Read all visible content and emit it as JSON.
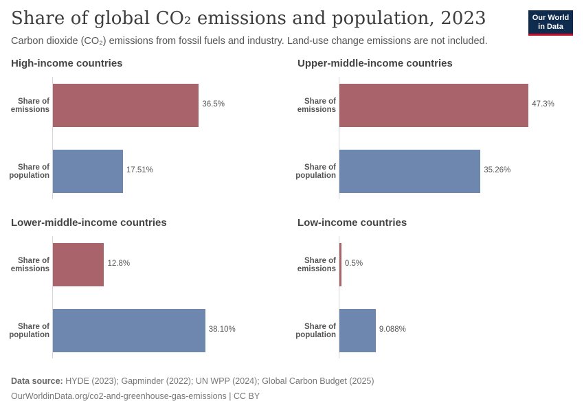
{
  "header": {
    "title": "Share of global CO₂ emissions and population, 2023",
    "subtitle": "Carbon dioxide (CO₂) emissions from fossil fuels and industry. Land-use change emissions are not included."
  },
  "logo": {
    "line1": "Our World",
    "line2": "in Data"
  },
  "footer": {
    "source_label": "Data source:",
    "source_text": "HYDE (2023); Gapminder (2022); UN WPP (2024); Global Carbon Budget (2025)",
    "url_text": "OurWorldinData.org/co2-and-greenhouse-gas-emissions | CC BY"
  },
  "colors": {
    "emissions": "#a9636a",
    "population": "#6d87ae"
  },
  "chart_data": [
    {
      "type": "bar",
      "title": "High-income countries",
      "categories": [
        "Share of emissions",
        "Share of population"
      ],
      "values": [
        36.5,
        17.51
      ],
      "value_labels": [
        "36.5%",
        "17.51%"
      ],
      "xlim": [
        0,
        50
      ]
    },
    {
      "type": "bar",
      "title": "Upper-middle-income countries",
      "categories": [
        "Share of emissions",
        "Share of population"
      ],
      "values": [
        47.3,
        35.26
      ],
      "value_labels": [
        "47.3%",
        "35.26%"
      ],
      "xlim": [
        0,
        50
      ]
    },
    {
      "type": "bar",
      "title": "Lower-middle-income countries",
      "categories": [
        "Share of emissions",
        "Share of population"
      ],
      "values": [
        12.8,
        38.1
      ],
      "value_labels": [
        "12.8%",
        "38.10%"
      ],
      "xlim": [
        0,
        50
      ]
    },
    {
      "type": "bar",
      "title": "Low-income countries",
      "categories": [
        "Share of emissions",
        "Share of population"
      ],
      "values": [
        0.5,
        9.088
      ],
      "value_labels": [
        "0.5%",
        "9.088%"
      ],
      "xlim": [
        0,
        50
      ]
    }
  ]
}
